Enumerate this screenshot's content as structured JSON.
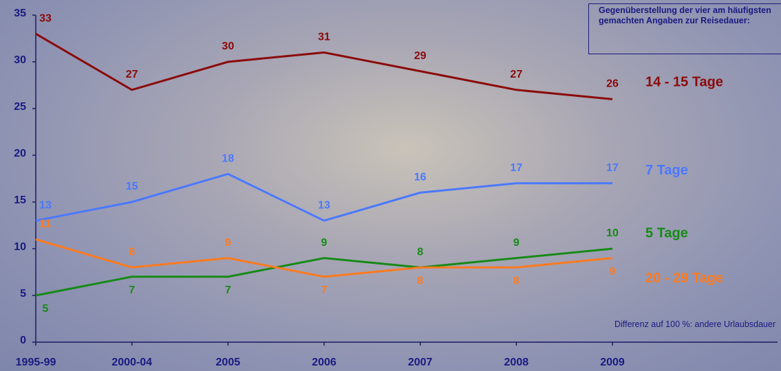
{
  "chart_data": {
    "type": "line",
    "title": "Gegenüberstellung der vier am häufigsten gemachten Angaben zur Reisedauer:",
    "note": "Differenz auf 100 %: andere Urlaubsdauer",
    "categories": [
      "1995-99",
      "2000-04",
      "2005",
      "2006",
      "2007",
      "2008",
      "2009"
    ],
    "ylim": [
      0,
      35
    ],
    "yticks": [
      0,
      5,
      10,
      15,
      20,
      25,
      30,
      35
    ],
    "series": [
      {
        "name": "14 - 15 Tage",
        "color": "#8b0a0a",
        "values": [
          33,
          27,
          30,
          31,
          29,
          27,
          26
        ]
      },
      {
        "name": "7 Tage",
        "color": "#4a78ff",
        "values": [
          13,
          15,
          18,
          13,
          16,
          17,
          17
        ]
      },
      {
        "name": "5 Tage",
        "color": "#168a16",
        "values": [
          5,
          7,
          7,
          9,
          8,
          9,
          10
        ]
      },
      {
        "name": "20 - 29 Tage",
        "color": "#ff7a1e",
        "values": [
          11,
          8,
          9,
          7,
          8,
          8,
          9
        ]
      }
    ]
  }
}
